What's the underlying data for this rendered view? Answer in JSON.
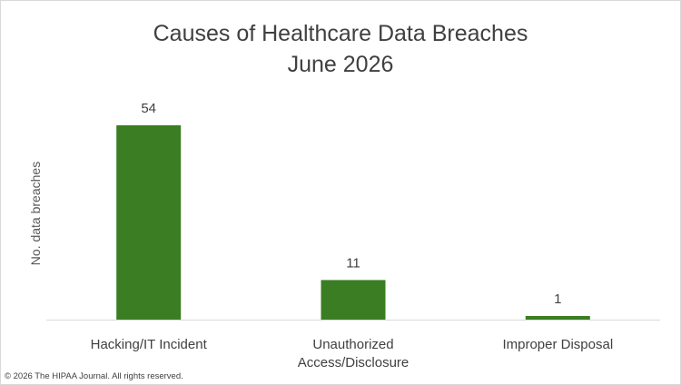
{
  "chart_data": {
    "type": "bar",
    "title_lines": [
      "Causes of Healthcare Data Breaches",
      "June 2026"
    ],
    "ylabel": "No. data breaches",
    "categories": [
      [
        "Hacking/IT Incident"
      ],
      [
        "Unauthorized",
        "Access/Disclosure"
      ],
      [
        "Improper Disposal"
      ]
    ],
    "values": [
      54,
      11,
      1
    ],
    "bar_color": "#3a7d22",
    "axis_color": "#d9d9d9",
    "ylim": [
      0,
      60
    ],
    "grid": false,
    "legend": "none"
  },
  "footer": {
    "copyright": "© 2026 The HIPAA Journal. All rights reserved."
  }
}
